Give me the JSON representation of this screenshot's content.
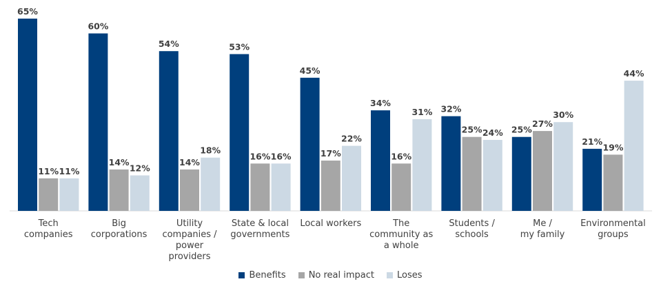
{
  "colors": {
    "benefits": "#003f7d",
    "no_impact": "#a6a6a6",
    "loses": "#ccd9e4"
  },
  "chart_data": {
    "type": "bar",
    "categories": [
      [
        "Tech",
        "companies"
      ],
      [
        "Big",
        "corporations"
      ],
      [
        "Utility",
        "companies /",
        "power",
        "providers"
      ],
      [
        "State & local",
        "governments"
      ],
      [
        "Local workers"
      ],
      [
        "The",
        "community as",
        "a whole"
      ],
      [
        "Students /",
        "schools"
      ],
      [
        "Me /",
        "my family"
      ],
      [
        "Environmental",
        "groups"
      ]
    ],
    "series": [
      {
        "name": "Benefits",
        "values": [
          65,
          60,
          54,
          53,
          45,
          34,
          32,
          25,
          21
        ],
        "labels": [
          "65%",
          "60%",
          "54%",
          "53%",
          "45%",
          "34%",
          "32%",
          "25%",
          "21%"
        ]
      },
      {
        "name": "No real impact",
        "values": [
          11,
          14,
          14,
          16,
          17,
          16,
          25,
          27,
          19
        ],
        "labels": [
          "11%",
          "14%",
          "14%",
          "16%",
          "17%",
          "16%",
          "25%",
          "27%",
          "19%"
        ]
      },
      {
        "name": "Loses",
        "values": [
          11,
          12,
          18,
          16,
          22,
          31,
          24,
          30,
          44
        ],
        "labels": [
          "11%",
          "12%",
          "18%",
          "16%",
          "22%",
          "31%",
          "24%",
          "30%",
          "44%"
        ]
      }
    ],
    "ylim": [
      0,
      65
    ],
    "grid": false,
    "legend_position": "bottom"
  }
}
